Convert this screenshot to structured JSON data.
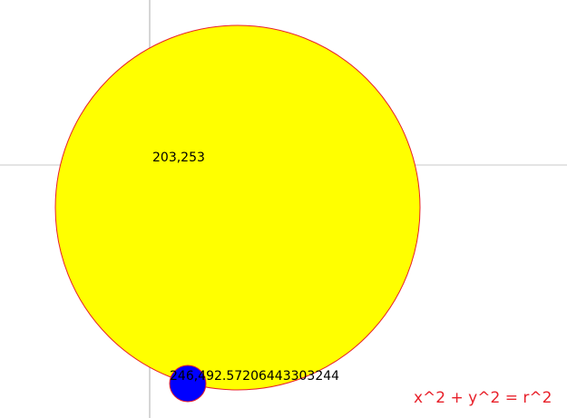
{
  "center_readout": "203,253",
  "point_readout": "246,492.57206443303244",
  "formula": "x^2 + y^2 = r^2",
  "colors": {
    "circle_fill": "#ffff00",
    "circle_stroke": "#e8202a",
    "point_fill": "#0000ff",
    "point_stroke": "#e8202a",
    "crosshair": "#c8c8c8",
    "formula": "#e8202a"
  }
}
